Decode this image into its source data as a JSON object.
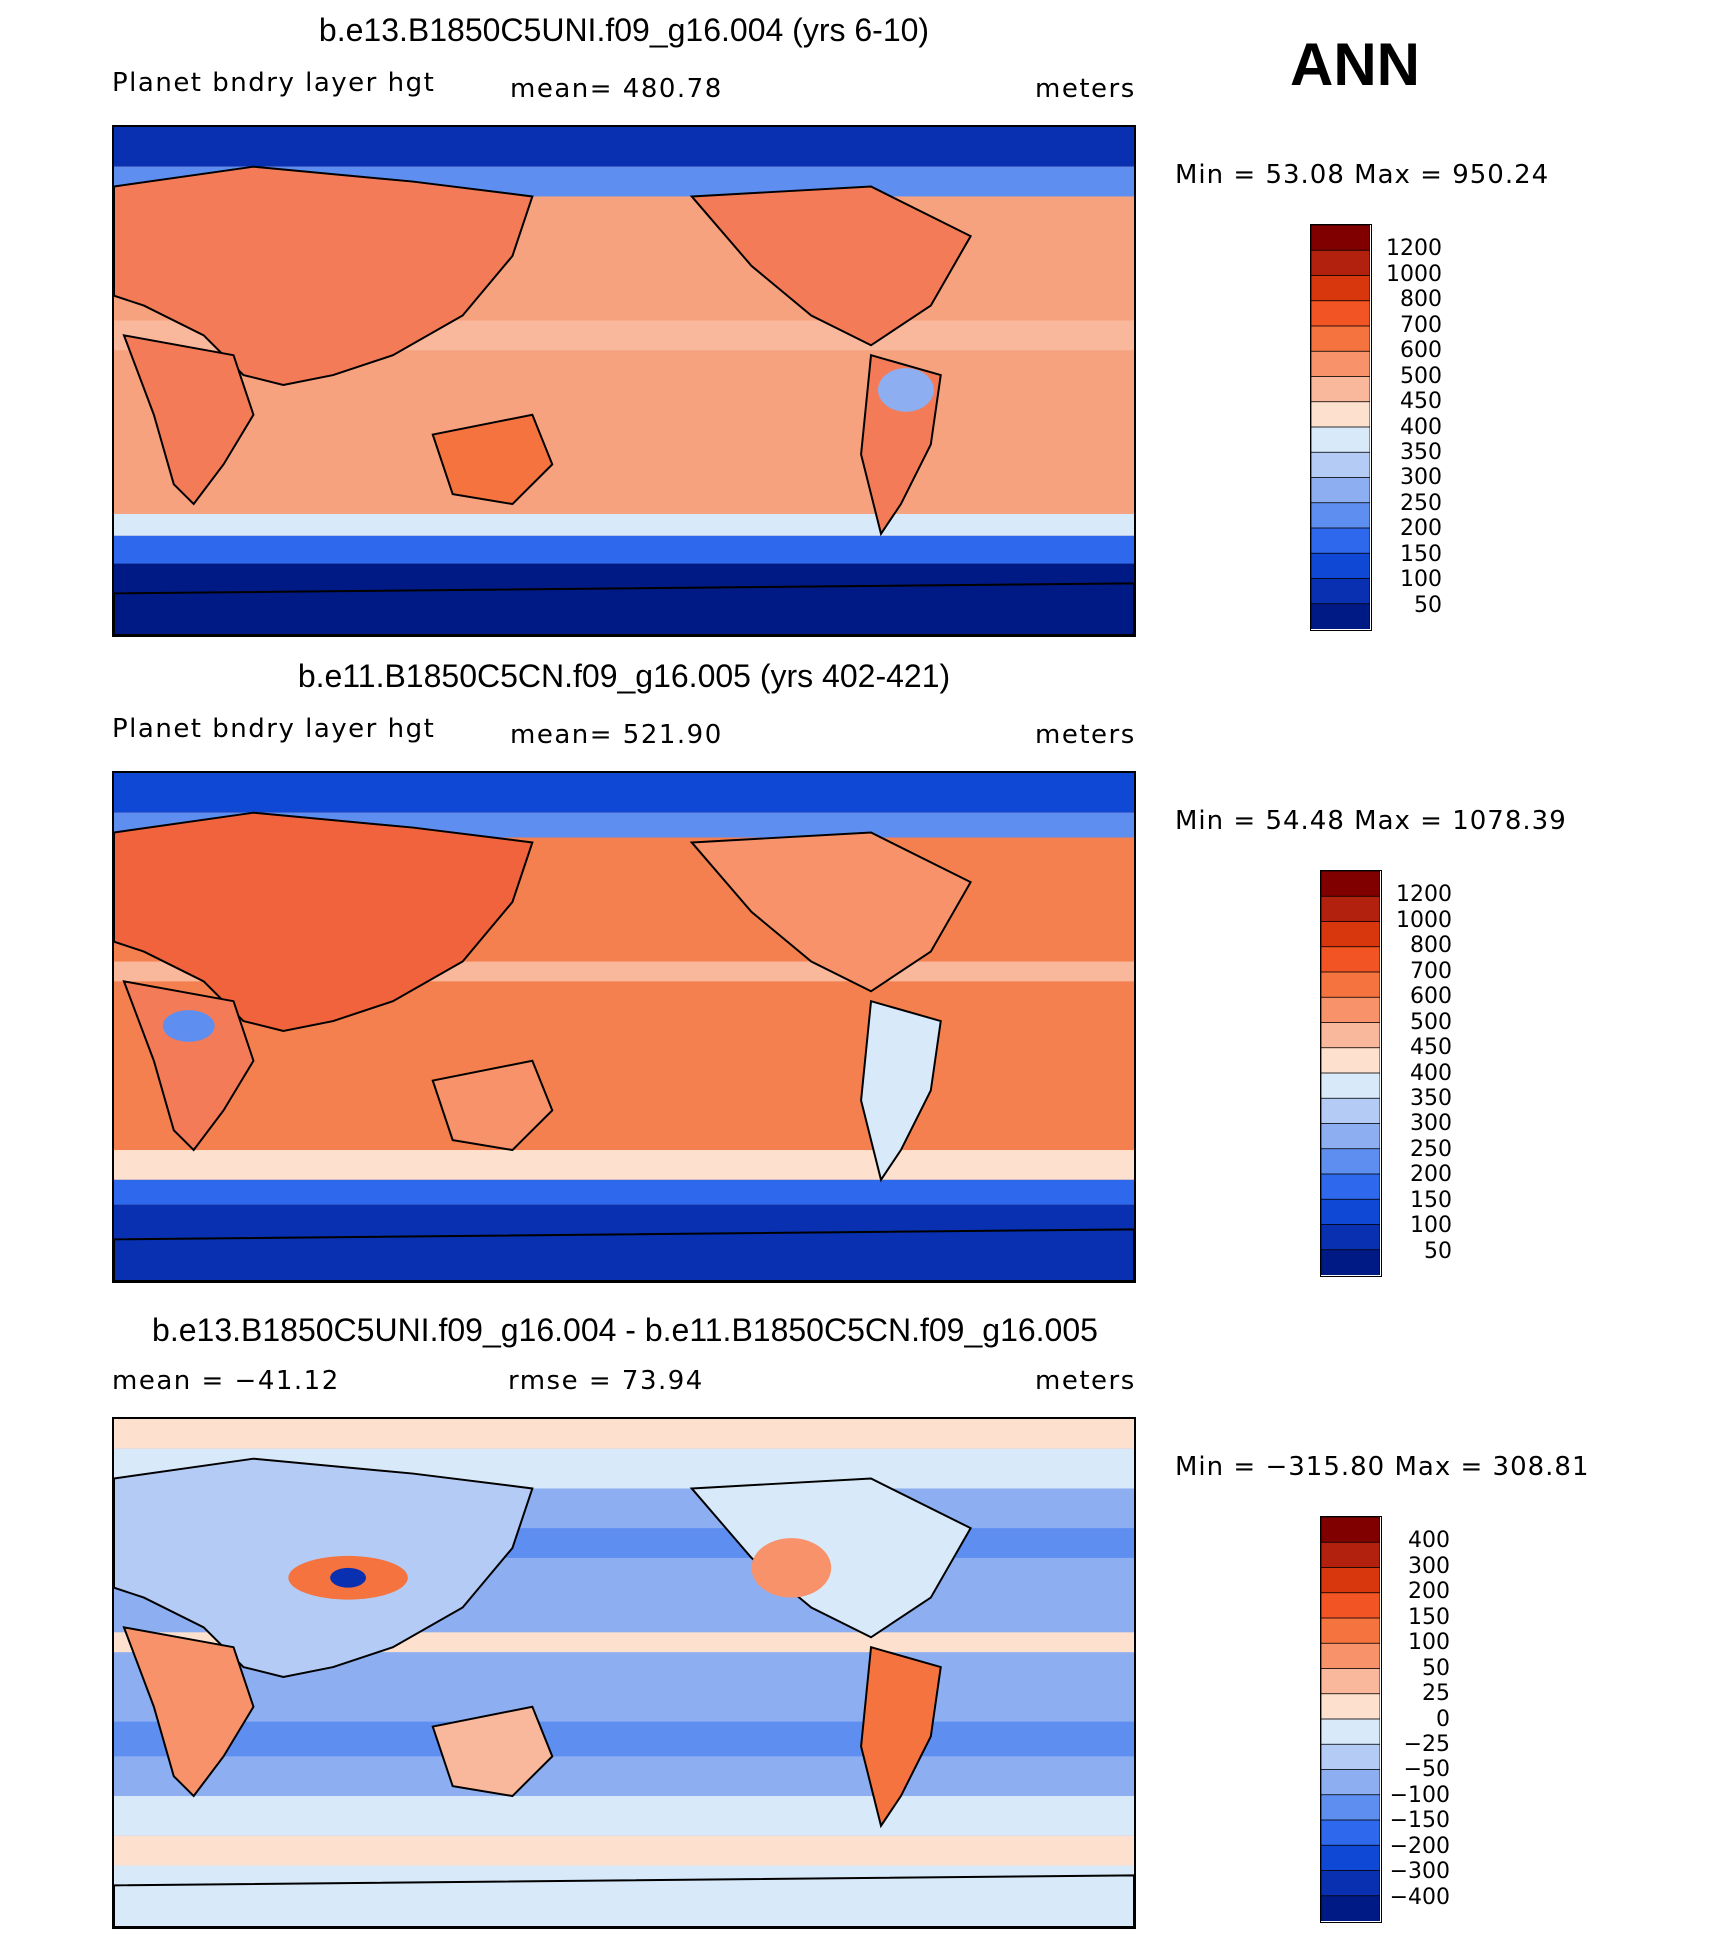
{
  "ann_label": "ANN",
  "panels": [
    {
      "title": "b.e13.B1850C5UNI.f09_g16.004 (yrs 6-10)",
      "left": "Planet bndry layer hgt",
      "center": "mean= 480.78",
      "right": "meters",
      "stats": "Min =   53.08 Max = 950.24",
      "colorbar_labels": [
        "1200",
        "1000",
        "800",
        "700",
        "600",
        "500",
        "450",
        "400",
        "350",
        "300",
        "250",
        "200",
        "150",
        "100",
        "50"
      ],
      "colorbar_colors": [
        "#800000",
        "#b2200e",
        "#d8360d",
        "#f25424",
        "#f5733f",
        "#f7926a",
        "#f9b79b",
        "#fde0cd",
        "#d8e9fa",
        "#b4ccf5",
        "#8daff1",
        "#5e8ef0",
        "#2e68ec",
        "#1048d6",
        "#0830b0",
        "#001a85"
      ],
      "ocean_color": "#f6a27e",
      "land_color": "#f47b58"
    },
    {
      "title": "b.e11.B1850C5CN.f09_g16.005 (yrs 402-421)",
      "left": "Planet bndry layer hgt",
      "center": "mean= 521.90",
      "right": "meters",
      "stats": "Min =   54.48 Max = 1078.39",
      "colorbar_labels": [
        "1200",
        "1000",
        "800",
        "700",
        "600",
        "500",
        "450",
        "400",
        "350",
        "300",
        "250",
        "200",
        "150",
        "100",
        "50"
      ],
      "colorbar_colors": [
        "#800000",
        "#b2200e",
        "#d8360d",
        "#f25424",
        "#f5733f",
        "#f7926a",
        "#f9b79b",
        "#fde0cd",
        "#d8e9fa",
        "#b4ccf5",
        "#8daff1",
        "#5e8ef0",
        "#2e68ec",
        "#1048d6",
        "#0830b0",
        "#001a85"
      ],
      "ocean_color": "#f5804f",
      "land_color": "#f0633d"
    },
    {
      "title": "b.e13.B1850C5UNI.f09_g16.004 - b.e11.B1850C5CN.f09_g16.005",
      "left": "mean = −41.12",
      "center": "rmse =   73.94",
      "right": "meters",
      "stats": "Min = −315.80 Max = 308.81",
      "colorbar_labels": [
        "400",
        "300",
        "200",
        "150",
        "100",
        "50",
        "25",
        "0",
        "−25",
        "−50",
        "−100",
        "−150",
        "−200",
        "−300",
        "−400"
      ],
      "colorbar_colors": [
        "#800000",
        "#b2200e",
        "#d8360d",
        "#f25424",
        "#f5733f",
        "#f7926a",
        "#f9b79b",
        "#fde0cd",
        "#d8e9fa",
        "#b4ccf5",
        "#8daff1",
        "#5e8ef0",
        "#2e68ec",
        "#1048d6",
        "#0830b0",
        "#001a85"
      ],
      "ocean_color": "#8daff1",
      "land_color": "#f7926a"
    }
  ]
}
